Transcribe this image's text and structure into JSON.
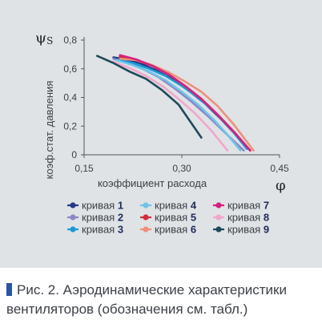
{
  "chart_data": {
    "type": "line",
    "y_symbol": "ψ",
    "y_symbol_sub": "S",
    "x_symbol": "φ",
    "xlabel": "коэффициент расхода",
    "ylabel": "коэф.стат. давления",
    "xlim": [
      0.15,
      0.45
    ],
    "ylim": [
      0,
      0.8
    ],
    "x_ticks": [
      0.15,
      0.3,
      0.45
    ],
    "x_tick_labels": [
      "0,15",
      "0,30",
      "0,45"
    ],
    "y_ticks": [
      0,
      0.2,
      0.4,
      0.6,
      0.8
    ],
    "y_tick_labels": [
      "0",
      "0,2",
      "0,4",
      "0,6",
      "0,8"
    ],
    "grid": false,
    "legend_position": "bottom",
    "series": [
      {
        "name": "кривая",
        "num": "1",
        "color": "#243a86",
        "x": [
          0.195,
          0.215,
          0.235,
          0.26,
          0.285,
          0.31,
          0.335,
          0.36,
          0.385,
          0.405
        ],
        "y": [
          0.68,
          0.665,
          0.64,
          0.59,
          0.53,
          0.45,
          0.36,
          0.25,
          0.13,
          0.03
        ]
      },
      {
        "name": "кривая",
        "num": "2",
        "color": "#8c86c4",
        "x": [
          0.195,
          0.215,
          0.24,
          0.265,
          0.29,
          0.315,
          0.34,
          0.365,
          0.395
        ],
        "y": [
          0.67,
          0.645,
          0.6,
          0.54,
          0.46,
          0.37,
          0.27,
          0.16,
          0.03
        ]
      },
      {
        "name": "кривая",
        "num": "3",
        "color": "#1a9ad6",
        "x": [
          0.2,
          0.225,
          0.25,
          0.275,
          0.3,
          0.325,
          0.35,
          0.375,
          0.4
        ],
        "y": [
          0.665,
          0.64,
          0.6,
          0.55,
          0.48,
          0.4,
          0.3,
          0.18,
          0.04
        ]
      },
      {
        "name": "кривая",
        "num": "4",
        "color": "#6fc3ea",
        "x": [
          0.2,
          0.225,
          0.25,
          0.275,
          0.3,
          0.325,
          0.35,
          0.37,
          0.39
        ],
        "y": [
          0.66,
          0.625,
          0.58,
          0.52,
          0.44,
          0.35,
          0.24,
          0.14,
          0.03
        ]
      },
      {
        "name": "кривая",
        "num": "5",
        "color": "#d42a3b",
        "x": [
          0.205,
          0.23,
          0.255,
          0.28,
          0.305,
          0.33,
          0.355,
          0.38,
          0.405
        ],
        "y": [
          0.685,
          0.66,
          0.62,
          0.56,
          0.48,
          0.39,
          0.28,
          0.16,
          0.03
        ]
      },
      {
        "name": "кривая",
        "num": "6",
        "color": "#ef8f78",
        "x": [
          0.205,
          0.23,
          0.255,
          0.28,
          0.305,
          0.33,
          0.355,
          0.38,
          0.41
        ],
        "y": [
          0.67,
          0.66,
          0.625,
          0.575,
          0.51,
          0.44,
          0.34,
          0.21,
          0.03
        ]
      },
      {
        "name": "кривая",
        "num": "7",
        "color": "#d4217f",
        "x": [
          0.205,
          0.23,
          0.255,
          0.28,
          0.305,
          0.33,
          0.355,
          0.38,
          0.405
        ],
        "y": [
          0.695,
          0.665,
          0.62,
          0.56,
          0.48,
          0.39,
          0.28,
          0.16,
          0.03
        ]
      },
      {
        "name": "кривая",
        "num": "8",
        "color": "#f2a6cb",
        "x": [
          0.195,
          0.22,
          0.245,
          0.27,
          0.295,
          0.32,
          0.345,
          0.37
        ],
        "y": [
          0.65,
          0.605,
          0.55,
          0.48,
          0.39,
          0.29,
          0.17,
          0.03
        ]
      },
      {
        "name": "кривая",
        "num": "9",
        "color": "#1f4a5a",
        "x": [
          0.17,
          0.195,
          0.22,
          0.245,
          0.27,
          0.295,
          0.33
        ],
        "y": [
          0.69,
          0.64,
          0.58,
          0.53,
          0.45,
          0.35,
          0.12
        ]
      }
    ]
  },
  "caption": {
    "text": "Рис. 2. Аэродинамические характеристики вентиляторов (обозначения см. табл.)"
  }
}
